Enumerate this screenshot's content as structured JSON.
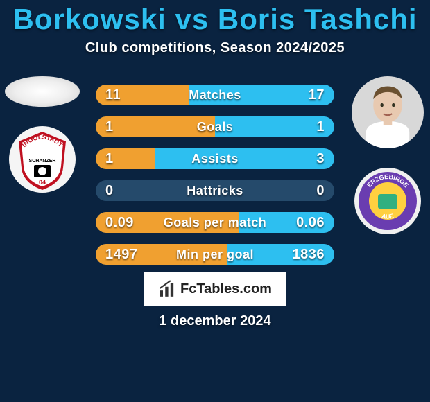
{
  "colors": {
    "background": "#0a2340",
    "title": "#2dbff0",
    "text": "#ffffff",
    "bar_base": "#254a6b",
    "bar_left": "#f0a030",
    "bar_right": "#2dbff0"
  },
  "title": "Borkowski vs Boris Tashchi",
  "subtitle": "Club competitions, Season 2024/2025",
  "branding": "FcTables.com",
  "date": "1 december 2024",
  "left": {
    "player_bg": "#eeeeee",
    "club": {
      "outer": "#f5f5f5",
      "inner": "#c01020",
      "text": "INGOLSTADT",
      "sub": "SCHANZER"
    }
  },
  "right": {
    "player": {
      "skin": "#e8c9b0",
      "hair": "#6b5030",
      "shirt": "#ffffff"
    },
    "club": {
      "outer": "#f0f0f0",
      "ring": "#6a3db0",
      "inner1": "#ffd040",
      "inner2": "#30b080",
      "text": "ERZGEBIRGE",
      "sub": "AUE"
    }
  },
  "rows": [
    {
      "label": "Matches",
      "l": "11",
      "r": "17",
      "pl": 39,
      "pr": 61
    },
    {
      "label": "Goals",
      "l": "1",
      "r": "1",
      "pl": 50,
      "pr": 50
    },
    {
      "label": "Assists",
      "l": "1",
      "r": "3",
      "pl": 25,
      "pr": 75
    },
    {
      "label": "Hattricks",
      "l": "0",
      "r": "0",
      "pl": 0,
      "pr": 0
    },
    {
      "label": "Goals per match",
      "l": "0.09",
      "r": "0.06",
      "pl": 60,
      "pr": 40
    },
    {
      "label": "Min per goal",
      "l": "1497",
      "r": "1836",
      "pl": 55,
      "pr": 45
    }
  ]
}
